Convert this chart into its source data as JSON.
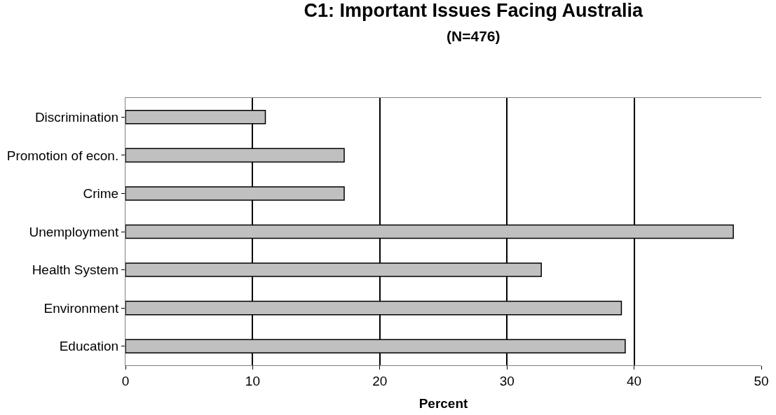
{
  "chart_data": {
    "type": "bar",
    "orientation": "horizontal",
    "title": "C1: Important Issues Facing Australia",
    "subtitle": "(N=476)",
    "xlabel": "Percent",
    "categories": [
      "Discrimination",
      "Promotion of econ.",
      "Crime",
      "Unemployment",
      "Health System",
      "Environment",
      "Education"
    ],
    "values": [
      11.0,
      17.2,
      17.2,
      47.8,
      32.7,
      39.0,
      39.3
    ],
    "color": "#c0c0c0",
    "xlim": [
      0,
      50
    ],
    "xticks": [
      0,
      10,
      20,
      30,
      40,
      50
    ],
    "grid": "x"
  }
}
